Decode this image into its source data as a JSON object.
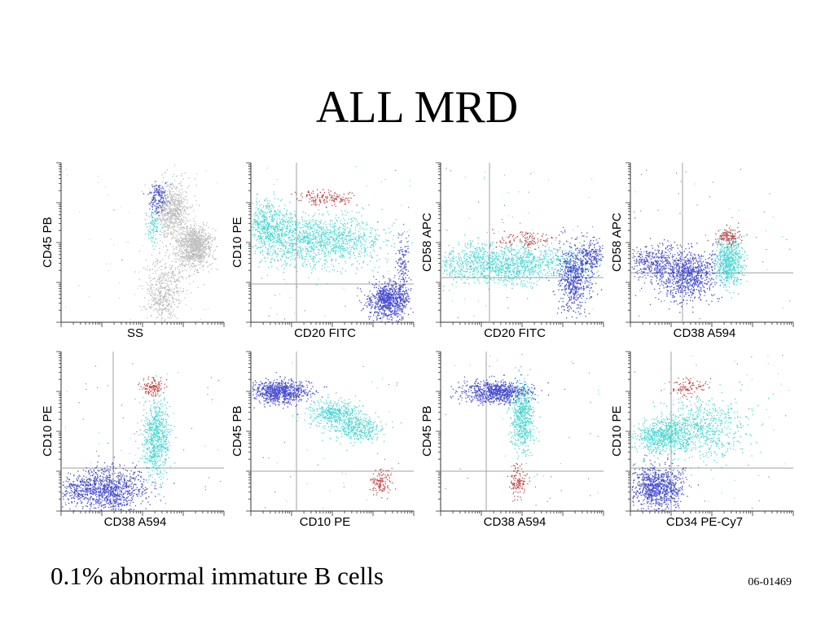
{
  "title": "ALL MRD",
  "caption": "0.1% abnormal immature B cells",
  "case_code": "06-01469",
  "colors": {
    "blue": "#1a22c0",
    "cyan": "#22d0c8",
    "red": "#b01818",
    "gray": "#8a8a8a",
    "gate_line": "#a0a0a0"
  },
  "chart_data": [
    {
      "type": "scatter",
      "xlabel": "SS",
      "ylabel": "CD45 PB",
      "gate": null,
      "populations": [
        {
          "color": "gray",
          "cx": 0.82,
          "cy": 0.52,
          "sx": 0.05,
          "sy": 0.06,
          "n": 900
        },
        {
          "color": "gray",
          "cx": 0.68,
          "cy": 0.3,
          "sx": 0.05,
          "sy": 0.1,
          "n": 700
        },
        {
          "color": "gray",
          "cx": 0.62,
          "cy": 0.85,
          "sx": 0.05,
          "sy": 0.07,
          "n": 300
        },
        {
          "color": "gray",
          "cx": 0.66,
          "cy": 0.7,
          "sx": 0.08,
          "sy": 0.08,
          "n": 250
        },
        {
          "color": "blue",
          "cx": 0.59,
          "cy": 0.22,
          "sx": 0.025,
          "sy": 0.05,
          "n": 160
        },
        {
          "color": "cyan",
          "cx": 0.56,
          "cy": 0.4,
          "sx": 0.02,
          "sy": 0.06,
          "n": 90
        }
      ]
    },
    {
      "type": "scatter",
      "xlabel": "CD20 FITC",
      "ylabel": "CD10 PE",
      "gate": {
        "x": 0.28,
        "y": 0.76
      },
      "populations": [
        {
          "color": "cyan",
          "cx": 0.38,
          "cy": 0.48,
          "sx": 0.22,
          "sy": 0.08,
          "n": 1400
        },
        {
          "color": "cyan",
          "cx": 0.1,
          "cy": 0.38,
          "sx": 0.07,
          "sy": 0.08,
          "n": 400
        },
        {
          "color": "blue",
          "cx": 0.84,
          "cy": 0.86,
          "sx": 0.06,
          "sy": 0.06,
          "n": 800
        },
        {
          "color": "blue",
          "cx": 0.93,
          "cy": 0.66,
          "sx": 0.02,
          "sy": 0.12,
          "n": 150
        },
        {
          "color": "red",
          "cx": 0.45,
          "cy": 0.22,
          "sx": 0.09,
          "sy": 0.025,
          "n": 150
        }
      ]
    },
    {
      "type": "scatter",
      "xlabel": "CD20 FITC",
      "ylabel": "CD58 APC",
      "gate": {
        "x": 0.3,
        "y": 0.72
      },
      "populations": [
        {
          "color": "cyan",
          "cx": 0.4,
          "cy": 0.63,
          "sx": 0.24,
          "sy": 0.06,
          "n": 1400
        },
        {
          "color": "blue",
          "cx": 0.82,
          "cy": 0.72,
          "sx": 0.05,
          "sy": 0.1,
          "n": 600
        },
        {
          "color": "blue",
          "cx": 0.92,
          "cy": 0.58,
          "sx": 0.04,
          "sy": 0.05,
          "n": 200
        },
        {
          "color": "red",
          "cx": 0.52,
          "cy": 0.48,
          "sx": 0.1,
          "sy": 0.03,
          "n": 120
        }
      ]
    },
    {
      "type": "scatter",
      "xlabel": "CD38 A594",
      "ylabel": "CD58 APC",
      "gate": {
        "x": 0.32,
        "y": 0.69
      },
      "populations": [
        {
          "color": "blue",
          "cx": 0.34,
          "cy": 0.7,
          "sx": 0.1,
          "sy": 0.08,
          "n": 900
        },
        {
          "color": "blue",
          "cx": 0.14,
          "cy": 0.62,
          "sx": 0.07,
          "sy": 0.05,
          "n": 300
        },
        {
          "color": "cyan",
          "cx": 0.6,
          "cy": 0.61,
          "sx": 0.04,
          "sy": 0.08,
          "n": 600
        },
        {
          "color": "red",
          "cx": 0.6,
          "cy": 0.46,
          "sx": 0.04,
          "sy": 0.03,
          "n": 120
        }
      ]
    },
    {
      "type": "scatter",
      "xlabel": "CD38 A594",
      "ylabel": "CD10 PE",
      "gate": {
        "x": 0.32,
        "y": 0.73
      },
      "populations": [
        {
          "color": "blue",
          "cx": 0.3,
          "cy": 0.86,
          "sx": 0.1,
          "sy": 0.07,
          "n": 900
        },
        {
          "color": "blue",
          "cx": 0.1,
          "cy": 0.86,
          "sx": 0.06,
          "sy": 0.05,
          "n": 200
        },
        {
          "color": "cyan",
          "cx": 0.58,
          "cy": 0.53,
          "sx": 0.04,
          "sy": 0.12,
          "n": 700
        },
        {
          "color": "red",
          "cx": 0.56,
          "cy": 0.22,
          "sx": 0.035,
          "sy": 0.03,
          "n": 120
        }
      ]
    },
    {
      "type": "scatter",
      "xlabel": "CD10 PE",
      "ylabel": "CD45 PB",
      "gate": {
        "x": 0.28,
        "y": 0.75
      },
      "populations": [
        {
          "color": "blue",
          "cx": 0.17,
          "cy": 0.25,
          "sx": 0.09,
          "sy": 0.035,
          "n": 800
        },
        {
          "color": "cyan",
          "cx": 0.5,
          "cy": 0.38,
          "sx": 0.08,
          "sy": 0.04,
          "n": 400
        },
        {
          "color": "cyan",
          "cx": 0.65,
          "cy": 0.48,
          "sx": 0.08,
          "sy": 0.04,
          "n": 400
        },
        {
          "color": "red",
          "cx": 0.8,
          "cy": 0.82,
          "sx": 0.035,
          "sy": 0.04,
          "n": 120
        }
      ]
    },
    {
      "type": "scatter",
      "xlabel": "CD38 A594",
      "ylabel": "CD45 PB",
      "gate": {
        "x": 0.28,
        "y": 0.75
      },
      "populations": [
        {
          "color": "blue",
          "cx": 0.34,
          "cy": 0.25,
          "sx": 0.1,
          "sy": 0.035,
          "n": 800
        },
        {
          "color": "cyan",
          "cx": 0.5,
          "cy": 0.41,
          "sx": 0.035,
          "sy": 0.11,
          "n": 600
        },
        {
          "color": "red",
          "cx": 0.47,
          "cy": 0.82,
          "sx": 0.025,
          "sy": 0.05,
          "n": 120
        }
      ]
    },
    {
      "type": "scatter",
      "xlabel": "CD34 PE-Cy7",
      "ylabel": "CD10 PE",
      "gate": {
        "x": 0.25,
        "y": 0.73
      },
      "populations": [
        {
          "color": "cyan",
          "cx": 0.2,
          "cy": 0.53,
          "sx": 0.08,
          "sy": 0.05,
          "n": 600
        },
        {
          "color": "cyan",
          "cx": 0.42,
          "cy": 0.48,
          "sx": 0.15,
          "sy": 0.1,
          "n": 700
        },
        {
          "color": "blue",
          "cx": 0.16,
          "cy": 0.85,
          "sx": 0.08,
          "sy": 0.07,
          "n": 900
        },
        {
          "color": "red",
          "cx": 0.35,
          "cy": 0.22,
          "sx": 0.06,
          "sy": 0.03,
          "n": 100
        }
      ]
    }
  ]
}
